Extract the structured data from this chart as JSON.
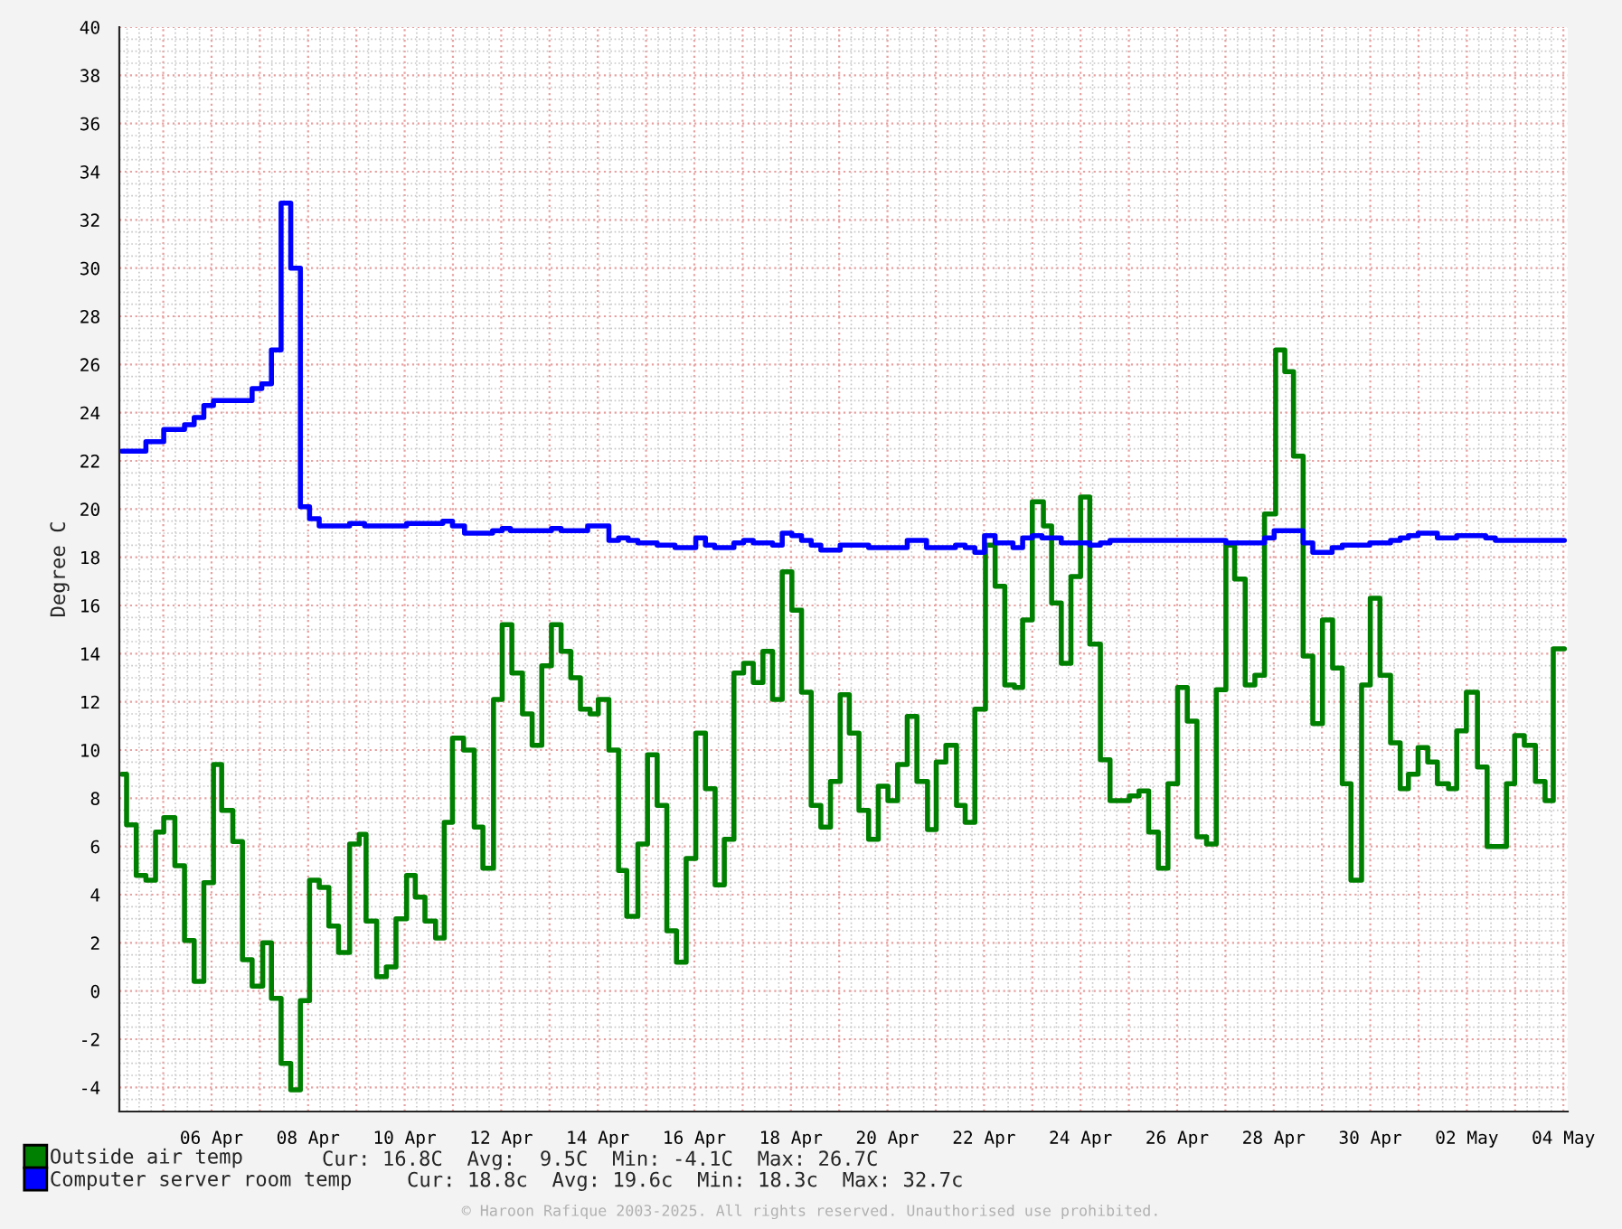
{
  "chart_data": {
    "type": "step",
    "ylabel": "Degree C",
    "xlim": [
      "2025-04-04T02:10",
      "2025-05-04T02:10"
    ],
    "ylim": [
      -5,
      40
    ],
    "xticks": [
      {
        "value": "2025-04-05",
        "label": null
      },
      {
        "value": "2025-04-06",
        "label": "06 Apr"
      },
      {
        "value": "2025-04-07",
        "label": null
      },
      {
        "value": "2025-04-08",
        "label": "08 Apr"
      },
      {
        "value": "2025-04-09",
        "label": null
      },
      {
        "value": "2025-04-10",
        "label": "10 Apr"
      },
      {
        "value": "2025-04-11",
        "label": null
      },
      {
        "value": "2025-04-12",
        "label": "12 Apr"
      },
      {
        "value": "2025-04-13",
        "label": null
      },
      {
        "value": "2025-04-14",
        "label": "14 Apr"
      },
      {
        "value": "2025-04-15",
        "label": null
      },
      {
        "value": "2025-04-16",
        "label": "16 Apr"
      },
      {
        "value": "2025-04-17",
        "label": null
      },
      {
        "value": "2025-04-18",
        "label": "18 Apr"
      },
      {
        "value": "2025-04-19",
        "label": null
      },
      {
        "value": "2025-04-20",
        "label": "20 Apr"
      },
      {
        "value": "2025-04-21",
        "label": null
      },
      {
        "value": "2025-04-22",
        "label": "22 Apr"
      },
      {
        "value": "2025-04-23",
        "label": null
      },
      {
        "value": "2025-04-24",
        "label": "24 Apr"
      },
      {
        "value": "2025-04-25",
        "label": null
      },
      {
        "value": "2025-04-26",
        "label": "26 Apr"
      },
      {
        "value": "2025-04-27",
        "label": null
      },
      {
        "value": "2025-04-28",
        "label": "28 Apr"
      },
      {
        "value": "2025-04-29",
        "label": null
      },
      {
        "value": "2025-04-30",
        "label": "30 Apr"
      },
      {
        "value": "2025-05-01",
        "label": null
      },
      {
        "value": "2025-05-02",
        "label": "02 May"
      },
      {
        "value": "2025-05-03",
        "label": null
      },
      {
        "value": "2025-05-04",
        "label": "04 May"
      }
    ],
    "yticks": [
      -4,
      -2,
      0,
      2,
      4,
      6,
      8,
      10,
      12,
      14,
      16,
      18,
      20,
      22,
      24,
      26,
      28,
      30,
      32,
      34,
      36,
      38,
      40
    ],
    "grid": true,
    "legend": "bottom left",
    "series": [
      {
        "name": "Outside air temp",
        "color": "#008000",
        "x": [
          "2025-04-04T03:22",
          "2025-04-04T05:46",
          "2025-04-04T10:34",
          "2025-04-04T15:22",
          "2025-04-04T20:10",
          "2025-04-05T00:14",
          "2025-04-05T05:46",
          "2025-04-05T10:34",
          "2025-04-05T15:22",
          "2025-04-05T20:10",
          "2025-04-06T00:58",
          "2025-04-06T05:02",
          "2025-04-06T10:34",
          "2025-04-06T15:22",
          "2025-04-06T20:10",
          "2025-04-07T01:26",
          "2025-04-07T05:46",
          "2025-04-07T10:34",
          "2025-04-07T15:22",
          "2025-04-07T20:10",
          "2025-04-08T00:43",
          "2025-04-08T05:31",
          "2025-04-08T10:19",
          "2025-04-08T15:07",
          "2025-04-08T20:38",
          "2025-04-09T01:26",
          "2025-04-09T04:48",
          "2025-04-09T10:05",
          "2025-04-09T14:53",
          "2025-04-09T19:41",
          "2025-04-10T00:58",
          "2025-04-10T05:17",
          "2025-04-10T10:05",
          "2025-04-10T15:22",
          "2025-04-10T19:41",
          "2025-04-10T23:46",
          "2025-04-11T05:17",
          "2025-04-11T10:34",
          "2025-04-11T14:53",
          "2025-04-11T20:10",
          "2025-04-12T00:29",
          "2025-04-12T05:17",
          "2025-04-12T10:34",
          "2025-04-12T15:22",
          "2025-04-12T20:10",
          "2025-04-13T00:58",
          "2025-04-13T05:46",
          "2025-04-13T10:34",
          "2025-04-13T15:22",
          "2025-04-13T20:10",
          "2025-04-14T00:14",
          "2025-04-14T05:31",
          "2025-04-14T10:19",
          "2025-04-14T14:24",
          "2025-04-14T19:55",
          "2025-04-15T00:43",
          "2025-04-15T05:31",
          "2025-04-15T10:19",
          "2025-04-15T15:07",
          "2025-04-15T19:55",
          "2025-04-16T00:43",
          "2025-04-16T05:31",
          "2025-04-16T10:19",
          "2025-04-16T14:53",
          "2025-04-16T19:41",
          "2025-04-17T00:29",
          "2025-04-17T05:17",
          "2025-04-17T10:05",
          "2025-04-17T14:53",
          "2025-04-17T19:41",
          "2025-04-18T00:29",
          "2025-04-18T05:17",
          "2025-04-18T10:05",
          "2025-04-18T14:53",
          "2025-04-18T19:41",
          "2025-04-19T00:29",
          "2025-04-19T05:02",
          "2025-04-19T09:50",
          "2025-04-19T14:38",
          "2025-04-19T19:26",
          "2025-04-20T00:14",
          "2025-04-20T05:02",
          "2025-04-20T09:50",
          "2025-04-20T14:38",
          "2025-04-20T19:55",
          "2025-04-21T00:14",
          "2025-04-21T05:02",
          "2025-04-21T10:19",
          "2025-04-21T14:38",
          "2025-04-21T19:26",
          "2025-04-22T00:43",
          "2025-04-22T05:31",
          "2025-04-22T10:19",
          "2025-04-22T15:07",
          "2025-04-22T19:12",
          "2025-04-23T00:00",
          "2025-04-23T05:31",
          "2025-04-23T09:36",
          "2025-04-23T14:24",
          "2025-04-23T19:12",
          "2025-04-24T00:00",
          "2025-04-24T04:34",
          "2025-04-24T09:50",
          "2025-04-24T14:38",
          "2025-04-25T00:14",
          "2025-04-25T05:02",
          "2025-04-25T09:50",
          "2025-04-25T14:38",
          "2025-04-25T19:26",
          "2025-04-26T00:14",
          "2025-04-26T05:02",
          "2025-04-26T09:50",
          "2025-04-26T14:38",
          "2025-04-26T19:26",
          "2025-04-27T00:14",
          "2025-04-27T04:34",
          "2025-04-27T09:50",
          "2025-04-27T14:38",
          "2025-04-27T19:26",
          "2025-04-28T00:58",
          "2025-04-28T05:31",
          "2025-04-28T09:50",
          "2025-04-28T14:38",
          "2025-04-28T19:26",
          "2025-04-29T00:14",
          "2025-04-29T05:17",
          "2025-04-29T10:05",
          "2025-04-29T14:24",
          "2025-04-29T19:41",
          "2025-04-30T00:00",
          "2025-04-30T04:48",
          "2025-04-30T10:05",
          "2025-04-30T14:53",
          "2025-04-30T18:58",
          "2025-04-30T23:46",
          "2025-05-01T04:34",
          "2025-05-01T09:22",
          "2025-05-01T14:53",
          "2025-05-01T18:58",
          "2025-05-01T23:46",
          "2025-05-02T05:17",
          "2025-05-02T10:05",
          "2025-05-02T19:41",
          "2025-05-02T23:46",
          "2025-05-03T04:34",
          "2025-05-03T10:05",
          "2025-05-03T14:53",
          "2025-05-03T18:58",
          "2025-05-04T00:29"
        ],
        "values": [
          9.0,
          6.9,
          4.8,
          4.6,
          6.6,
          7.2,
          5.2,
          2.1,
          0.4,
          4.5,
          9.4,
          7.5,
          6.2,
          1.3,
          0.2,
          2.0,
          -0.3,
          -3.0,
          -4.1,
          -0.4,
          4.6,
          4.3,
          2.7,
          1.6,
          6.1,
          6.5,
          2.9,
          0.6,
          1.0,
          3.0,
          4.8,
          3.9,
          2.9,
          2.2,
          7.0,
          10.5,
          10.0,
          6.8,
          5.1,
          12.1,
          15.2,
          13.2,
          11.5,
          10.2,
          13.5,
          15.2,
          14.1,
          13.0,
          11.7,
          11.5,
          12.1,
          10.0,
          5.0,
          3.1,
          6.1,
          9.8,
          7.7,
          2.5,
          1.2,
          5.5,
          10.7,
          8.4,
          4.4,
          6.3,
          13.2,
          13.6,
          12.8,
          14.1,
          12.1,
          17.4,
          15.8,
          12.4,
          7.7,
          6.8,
          8.7,
          12.3,
          10.7,
          7.5,
          6.3,
          8.5,
          7.9,
          9.4,
          11.4,
          8.7,
          6.7,
          9.5,
          10.2,
          7.7,
          7.0,
          11.7,
          18.5,
          16.8,
          12.7,
          12.6,
          15.4,
          20.3,
          19.3,
          16.1,
          13.6,
          17.2,
          20.5,
          14.4,
          9.6,
          7.9,
          8.1,
          8.3,
          6.6,
          5.1,
          8.6,
          12.6,
          11.2,
          6.4,
          6.1,
          12.5,
          18.5,
          17.1,
          12.7,
          13.1,
          19.8,
          26.6,
          25.7,
          22.2,
          13.9,
          11.1,
          15.4,
          13.4,
          8.6,
          4.6,
          12.7,
          16.3,
          13.1,
          10.3,
          8.4,
          9.0,
          10.1,
          9.5,
          8.6,
          8.4,
          10.8,
          12.4,
          9.3,
          6.0,
          8.6,
          10.6,
          10.2,
          8.7,
          7.9,
          14.2,
          14.2
        ]
      },
      {
        "name": "Computer server room temp",
        "color": "#0000ff",
        "x": [
          "2025-04-04T03:22",
          "2025-04-04T15:22",
          "2025-04-05T00:14",
          "2025-04-05T10:34",
          "2025-04-05T15:22",
          "2025-04-05T20:10",
          "2025-04-06T00:58",
          "2025-04-06T20:10",
          "2025-04-07T00:58",
          "2025-04-07T05:46",
          "2025-04-07T10:34",
          "2025-04-07T15:22",
          "2025-04-07T20:10",
          "2025-04-08T00:43",
          "2025-04-08T05:31",
          "2025-04-08T20:38",
          "2025-04-09T04:05",
          "2025-04-10T00:58",
          "2025-04-10T18:58",
          "2025-04-10T23:46",
          "2025-04-11T05:46",
          "2025-04-11T19:41",
          "2025-04-12T00:29",
          "2025-04-12T04:34",
          "2025-04-13T00:58",
          "2025-04-13T05:46",
          "2025-04-13T18:58",
          "2025-04-14T05:31",
          "2025-04-14T10:19",
          "2025-04-14T15:07",
          "2025-04-14T19:55",
          "2025-04-15T05:31",
          "2025-04-15T14:24",
          "2025-04-16T00:43",
          "2025-04-16T05:31",
          "2025-04-16T10:05",
          "2025-04-16T19:41",
          "2025-04-17T00:29",
          "2025-04-17T05:17",
          "2025-04-17T14:53",
          "2025-04-17T19:41",
          "2025-04-18T00:29",
          "2025-04-18T05:17",
          "2025-04-18T10:05",
          "2025-04-18T14:53",
          "2025-04-19T00:29",
          "2025-04-19T14:38",
          "2025-04-20T09:50",
          "2025-04-20T19:26",
          "2025-04-21T09:50",
          "2025-04-21T14:38",
          "2025-04-21T19:26",
          "2025-04-22T00:14",
          "2025-04-22T05:31",
          "2025-04-22T14:24",
          "2025-04-22T19:12",
          "2025-04-23T00:00",
          "2025-04-23T04:48",
          "2025-04-23T14:24",
          "2025-04-24T04:34",
          "2025-04-24T09:50",
          "2025-04-24T14:38",
          "2025-04-27T00:14",
          "2025-04-27T19:26",
          "2025-04-28T00:14",
          "2025-04-28T14:38",
          "2025-04-28T19:26",
          "2025-04-29T05:02",
          "2025-04-29T10:05",
          "2025-04-29T23:46",
          "2025-04-30T10:05",
          "2025-04-30T14:53",
          "2025-04-30T18:58",
          "2025-04-30T23:46",
          "2025-05-01T09:22",
          "2025-05-01T18:58",
          "2025-05-02T09:22",
          "2025-05-02T14:10",
          "2025-05-04T00:29"
        ],
        "values": [
          22.4,
          22.8,
          23.3,
          23.5,
          23.8,
          24.3,
          24.5,
          25.0,
          25.2,
          26.6,
          32.7,
          30.0,
          20.1,
          19.6,
          19.3,
          19.4,
          19.3,
          19.4,
          19.5,
          19.3,
          19.0,
          19.1,
          19.2,
          19.1,
          19.2,
          19.1,
          19.3,
          18.7,
          18.8,
          18.7,
          18.6,
          18.5,
          18.4,
          18.8,
          18.5,
          18.4,
          18.6,
          18.7,
          18.6,
          18.5,
          19.0,
          18.9,
          18.7,
          18.5,
          18.3,
          18.5,
          18.4,
          18.7,
          18.4,
          18.5,
          18.4,
          18.2,
          18.9,
          18.6,
          18.4,
          18.8,
          18.9,
          18.8,
          18.6,
          18.5,
          18.6,
          18.7,
          18.6,
          18.8,
          19.1,
          18.6,
          18.2,
          18.4,
          18.5,
          18.6,
          18.7,
          18.8,
          18.9,
          19.0,
          18.8,
          18.9,
          18.8,
          18.7,
          18.7
        ]
      }
    ],
    "annotations": [
      "Cur: 16.8C  Avg:  9.5C  Min: -4.1C  Max: 26.7C",
      "Cur: 18.8c  Avg: 19.6c  Min: 18.3c  Max: 32.7c",
      "© Haroon Rafique 2003-2025. All rights reserved. Unauthorised use prohibited."
    ]
  }
}
